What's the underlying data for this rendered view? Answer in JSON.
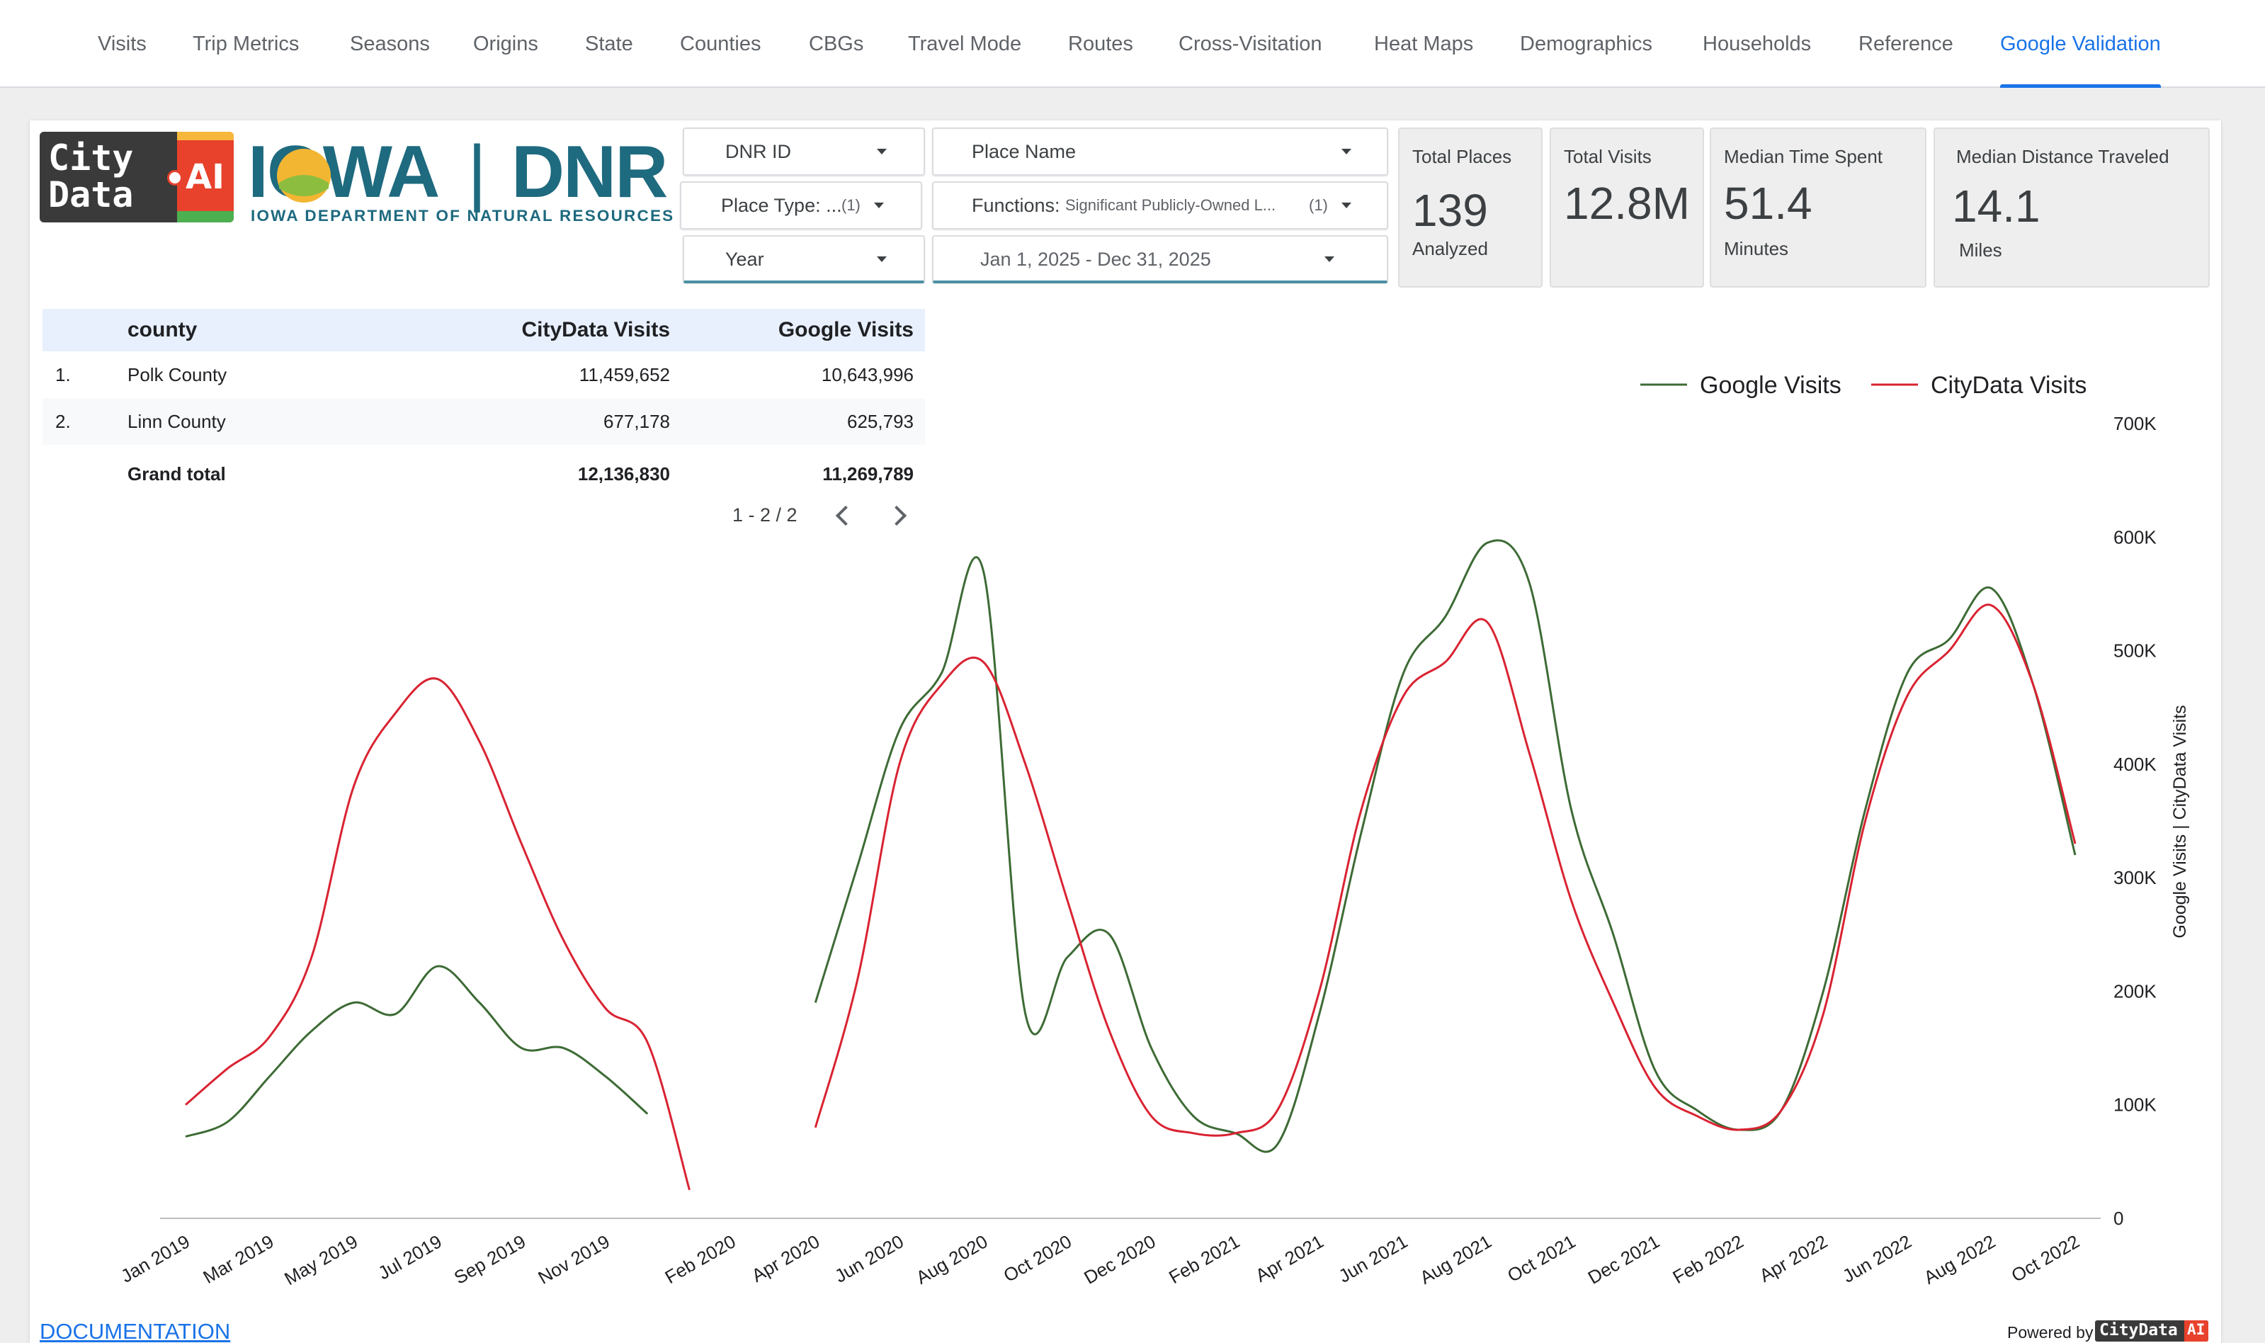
{
  "nav": {
    "tabs": [
      "Visits",
      "Trip Metrics",
      "Seasons",
      "Origins",
      "State",
      "Counties",
      "CBGs",
      "Travel Mode",
      "Routes",
      "Cross-Visitation",
      "Heat Maps",
      "Demographics",
      "Households",
      "Reference",
      "Google Validation"
    ],
    "active": "Google Validation"
  },
  "logos": {
    "citydata_line1": "City",
    "citydata_line2": "Data",
    "citydata_ai": "AI",
    "dnr_iowa": "IOWA",
    "dnr_sep": "|",
    "dnr_dnr": "DNR",
    "dnr_subtitle": "IOWA DEPARTMENT OF NATURAL RESOURCES"
  },
  "filters": {
    "dnr_id": "DNR ID",
    "place_name": "Place Name",
    "place_type": "Place Type: ...",
    "place_type_count": "(1)",
    "functions_label": "Functions:",
    "functions_value": "Significant Publicly-Owned L...",
    "functions_count": "(1)",
    "year": "Year",
    "date_range": "Jan 1, 2025 - Dec 31, 2025"
  },
  "scorecards": [
    {
      "title": "Total Places",
      "value": "139",
      "sub": "Analyzed"
    },
    {
      "title": "Total Visits",
      "value": "12.8M",
      "sub": ""
    },
    {
      "title": "Median Time Spent",
      "value": "51.4",
      "sub": "Minutes"
    },
    {
      "title": "Median Distance Traveled",
      "value": "14.1",
      "sub": "Miles"
    }
  ],
  "table": {
    "headers": {
      "county": "county",
      "citydata": "CityData Visits",
      "google": "Google Visits"
    },
    "rows": [
      {
        "idx": "1.",
        "county": "Polk County",
        "citydata": "11,459,652",
        "google": "10,643,996"
      },
      {
        "idx": "2.",
        "county": "Linn County",
        "citydata": "677,178",
        "google": "625,793"
      }
    ],
    "total": {
      "label": "Grand total",
      "citydata": "12,136,830",
      "google": "11,269,789"
    },
    "pager": "1 - 2 / 2"
  },
  "chart_data": {
    "type": "line",
    "xlabel": "",
    "ylabel": "Google Visits | CityData Visits",
    "ylim": [
      0,
      700000
    ],
    "y_ticks": [
      "0",
      "100K",
      "200K",
      "300K",
      "400K",
      "500K",
      "600K",
      "700K"
    ],
    "legend_position": "top-right",
    "x_tick_labels": [
      "Jan 2019",
      "Mar 2019",
      "May 2019",
      "Jul 2019",
      "Sep 2019",
      "Nov 2019",
      "Feb 2020",
      "Apr 2020",
      "Jun 2020",
      "Aug 2020",
      "Oct 2020",
      "Dec 2020",
      "Feb 2021",
      "Apr 2021",
      "Jun 2021",
      "Aug 2021",
      "Oct 2021",
      "Dec 2021",
      "Feb 2022",
      "Apr 2022",
      "Jun 2022",
      "Aug 2022",
      "Oct 2022"
    ],
    "x": [
      "Jan 2019",
      "Feb 2019",
      "Mar 2019",
      "Apr 2019",
      "May 2019",
      "Jun 2019",
      "Jul 2019",
      "Aug 2019",
      "Sep 2019",
      "Oct 2019",
      "Nov 2019",
      "Dec 2019",
      "Jan 2020",
      "Feb 2020",
      "Mar 2020",
      "Apr 2020",
      "May 2020",
      "Jun 2020",
      "Jul 2020",
      "Aug 2020",
      "Sep 2020",
      "Oct 2020",
      "Nov 2020",
      "Dec 2020",
      "Jan 2021",
      "Feb 2021",
      "Mar 2021",
      "Apr 2021",
      "May 2021",
      "Jun 2021",
      "Jul 2021",
      "Aug 2021",
      "Sep 2021",
      "Oct 2021",
      "Nov 2021",
      "Dec 2021",
      "Jan 2022",
      "Feb 2022",
      "Mar 2022",
      "Apr 2022",
      "May 2022",
      "Jun 2022",
      "Jul 2022",
      "Aug 2022",
      "Sep 2022",
      "Oct 2022"
    ],
    "series": [
      {
        "name": "Google Visits",
        "color": "#3d6b35",
        "values": [
          72000,
          85000,
          125000,
          165000,
          190000,
          180000,
          222000,
          190000,
          150000,
          150000,
          125000,
          92000,
          null,
          null,
          null,
          190000,
          310000,
          430000,
          480000,
          570000,
          180000,
          230000,
          250000,
          150000,
          90000,
          75000,
          65000,
          180000,
          340000,
          480000,
          530000,
          595000,
          560000,
          360000,
          250000,
          130000,
          95000,
          78000,
          95000,
          200000,
          360000,
          480000,
          510000,
          555000,
          470000,
          320000
        ]
      },
      {
        "name": "CityData Visits",
        "color": "#d92332",
        "values": [
          100000,
          132000,
          160000,
          230000,
          380000,
          445000,
          475000,
          420000,
          330000,
          245000,
          185000,
          155000,
          25000,
          null,
          null,
          80000,
          210000,
          400000,
          470000,
          490000,
          400000,
          280000,
          165000,
          90000,
          75000,
          75000,
          95000,
          200000,
          360000,
          460000,
          490000,
          525000,
          410000,
          280000,
          190000,
          115000,
          90000,
          78000,
          95000,
          180000,
          350000,
          460000,
          500000,
          540000,
          470000,
          330000
        ]
      }
    ]
  },
  "footer": {
    "doc_link": "DOCUMENTATION",
    "powered_by": "Powered by",
    "powered_brand": "CityData",
    "powered_ai": "AI"
  },
  "colors": {
    "accent": "#1a73e8",
    "dnr_teal": "#1e6a7f",
    "google_line": "#3d6b35",
    "citydata_line": "#d92332"
  }
}
